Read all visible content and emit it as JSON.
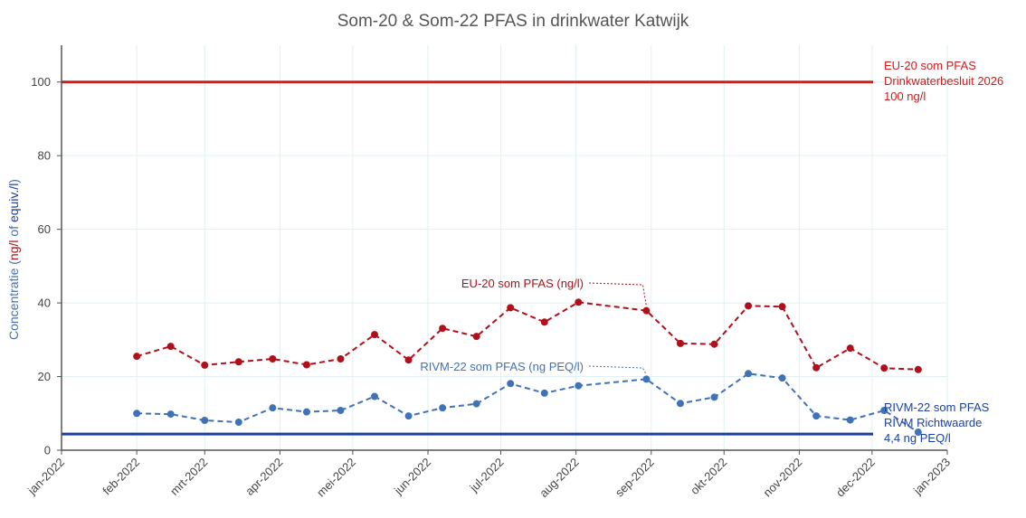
{
  "chart_data": {
    "type": "line",
    "title": "Som-20 & Som-22 PFAS in drinkwater Katwijk",
    "ylabel": {
      "part1": "Concentratie (",
      "part2": "ng/l",
      "part3": " of ",
      "part4": "equiv./l",
      "part5": ")"
    },
    "ylim": [
      0,
      110
    ],
    "yticks": [
      0,
      20,
      40,
      60,
      80,
      100
    ],
    "xlim": [
      "2022-01-01",
      "2023-01-01"
    ],
    "xticks": [
      {
        "date": "2022-01-01",
        "label": "jan-2022"
      },
      {
        "date": "2022-02-01",
        "label": "feb-2022"
      },
      {
        "date": "2022-03-01",
        "label": "mrt-2022"
      },
      {
        "date": "2022-04-01",
        "label": "apr-2022"
      },
      {
        "date": "2022-05-01",
        "label": "mei-2022"
      },
      {
        "date": "2022-06-01",
        "label": "jun-2022"
      },
      {
        "date": "2022-07-01",
        "label": "jul-2022"
      },
      {
        "date": "2022-08-01",
        "label": "aug-2022"
      },
      {
        "date": "2022-09-01",
        "label": "sep-2022"
      },
      {
        "date": "2022-10-01",
        "label": "okt-2022"
      },
      {
        "date": "2022-11-01",
        "label": "nov-2022"
      },
      {
        "date": "2022-12-01",
        "label": "dec-2022"
      },
      {
        "date": "2023-01-01",
        "label": "jan-2023"
      }
    ],
    "grid": true,
    "series": [
      {
        "name": "EU-20 som PFAS (ng/l)",
        "color": "#b0101a",
        "style": "dashed",
        "x": [
          "2022-02-01",
          "2022-02-15",
          "2022-03-01",
          "2022-03-15",
          "2022-03-29",
          "2022-04-12",
          "2022-04-26",
          "2022-05-10",
          "2022-05-24",
          "2022-06-07",
          "2022-06-21",
          "2022-07-05",
          "2022-07-19",
          "2022-08-02",
          "2022-08-30",
          "2022-09-13",
          "2022-09-27",
          "2022-10-11",
          "2022-10-25",
          "2022-11-08",
          "2022-11-22",
          "2022-12-06",
          "2022-12-20"
        ],
        "y": [
          25.5,
          28.2,
          23.1,
          24.0,
          24.8,
          23.2,
          24.8,
          31.4,
          24.5,
          33.1,
          30.9,
          38.7,
          34.8,
          40.2,
          37.9,
          29.0,
          28.8,
          39.2,
          39.0,
          22.4,
          27.7,
          22.3,
          21.9
        ]
      },
      {
        "name": "RIVM-22 som PFAS (ng PEQ/l)",
        "color": "#3f72b8",
        "style": "dashed",
        "x": [
          "2022-02-01",
          "2022-02-15",
          "2022-03-01",
          "2022-03-15",
          "2022-03-29",
          "2022-04-12",
          "2022-04-26",
          "2022-05-10",
          "2022-05-24",
          "2022-06-07",
          "2022-06-21",
          "2022-07-05",
          "2022-07-19",
          "2022-08-02",
          "2022-08-30",
          "2022-09-13",
          "2022-09-27",
          "2022-10-11",
          "2022-10-25",
          "2022-11-08",
          "2022-11-22",
          "2022-12-06",
          "2022-12-20"
        ],
        "y": [
          10.0,
          9.8,
          8.1,
          7.6,
          11.5,
          10.4,
          10.8,
          14.6,
          9.3,
          11.5,
          12.6,
          18.1,
          15.5,
          17.5,
          19.3,
          12.7,
          14.4,
          20.8,
          19.6,
          9.3,
          8.2,
          10.8,
          4.9
        ]
      }
    ],
    "reference_lines": [
      {
        "name": "EU-20 som PFAS",
        "value": 100,
        "color": "#d11c1c",
        "labels": [
          "EU-20 som PFAS",
          "Drinkwaterbesluit 2026",
          "100 ng/l"
        ]
      },
      {
        "name": "RIVM-22 som PFAS",
        "value": 4.4,
        "color": "#1b3fa3",
        "labels": [
          "RIVM-22 som PFAS",
          "RIVM Richtwaarde",
          "4,4 ng PEQ/l"
        ]
      }
    ],
    "annotations": [
      {
        "text": "EU-20 som PFAS (ng/l)",
        "color": "#b0101a",
        "points_to": {
          "date": "2022-08-30",
          "value": 37.9
        }
      },
      {
        "text": "RIVM-22 som PFAS (ng PEQ/l)",
        "color": "#3f72b8",
        "points_to": {
          "date": "2022-08-30",
          "value": 19.3
        }
      }
    ],
    "colors": {
      "text": "#444444",
      "ylabel_blue": "#3f72b8",
      "ylabel_red": "#b0101a",
      "grid": "#dff0f3"
    }
  }
}
